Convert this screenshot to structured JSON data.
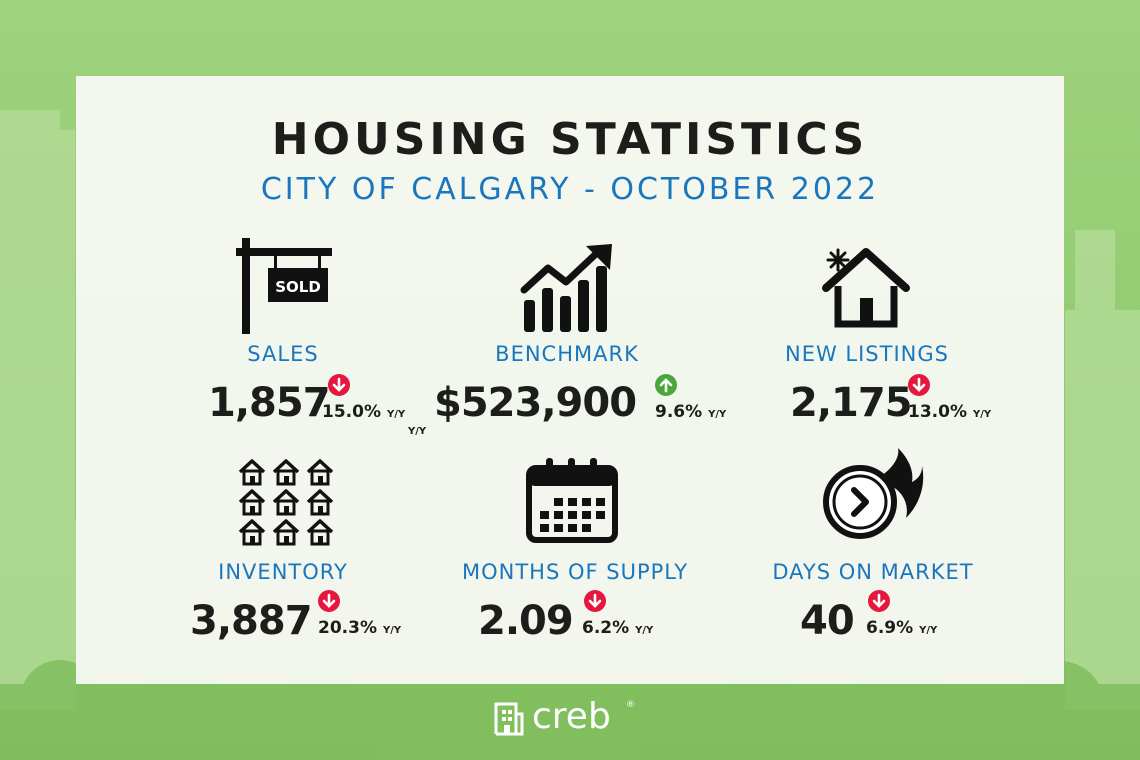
{
  "header": {
    "title": "HOUSING STATISTICS",
    "subtitle": "CITY OF CALGARY - OCTOBER 2022"
  },
  "sold_sign_text": "SOLD",
  "stats": {
    "sales": {
      "label": "SALES",
      "value": "1,857",
      "change": "15.0%",
      "unit": "Y/Y",
      "direction": "down",
      "icon": "sold-sign-icon"
    },
    "benchmark": {
      "label": "BENCHMARK",
      "value": "$523,900",
      "change": "9.6%",
      "unit": "Y/Y",
      "direction": "up",
      "icon": "rising-chart-icon"
    },
    "new_listings": {
      "label": "NEW LISTINGS",
      "value": "2,175",
      "change": "13.0%",
      "unit": "Y/Y",
      "direction": "down",
      "icon": "new-house-icon"
    },
    "inventory": {
      "label": "INVENTORY",
      "value": "3,887",
      "change": "20.3%",
      "unit": "Y/Y",
      "direction": "down",
      "icon": "houses-grid-icon"
    },
    "months_of_supply": {
      "label": "MONTHS OF SUPPLY",
      "value": "2.09",
      "change": "6.2%",
      "unit": "Y/Y",
      "direction": "down",
      "icon": "calendar-icon"
    },
    "days_on_market": {
      "label": "DAYS ON MARKET",
      "value": "40",
      "change": "6.9%",
      "unit": "Y/Y",
      "direction": "down",
      "icon": "fast-clock-icon"
    }
  },
  "footer": {
    "brand": "creb",
    "registered": "®"
  },
  "colors": {
    "accent_blue": "#1a76bd",
    "down_red": "#e5173f",
    "up_green": "#4aa83a",
    "background_green": "#8fca6e",
    "text_dark": "#1d1d1b"
  }
}
